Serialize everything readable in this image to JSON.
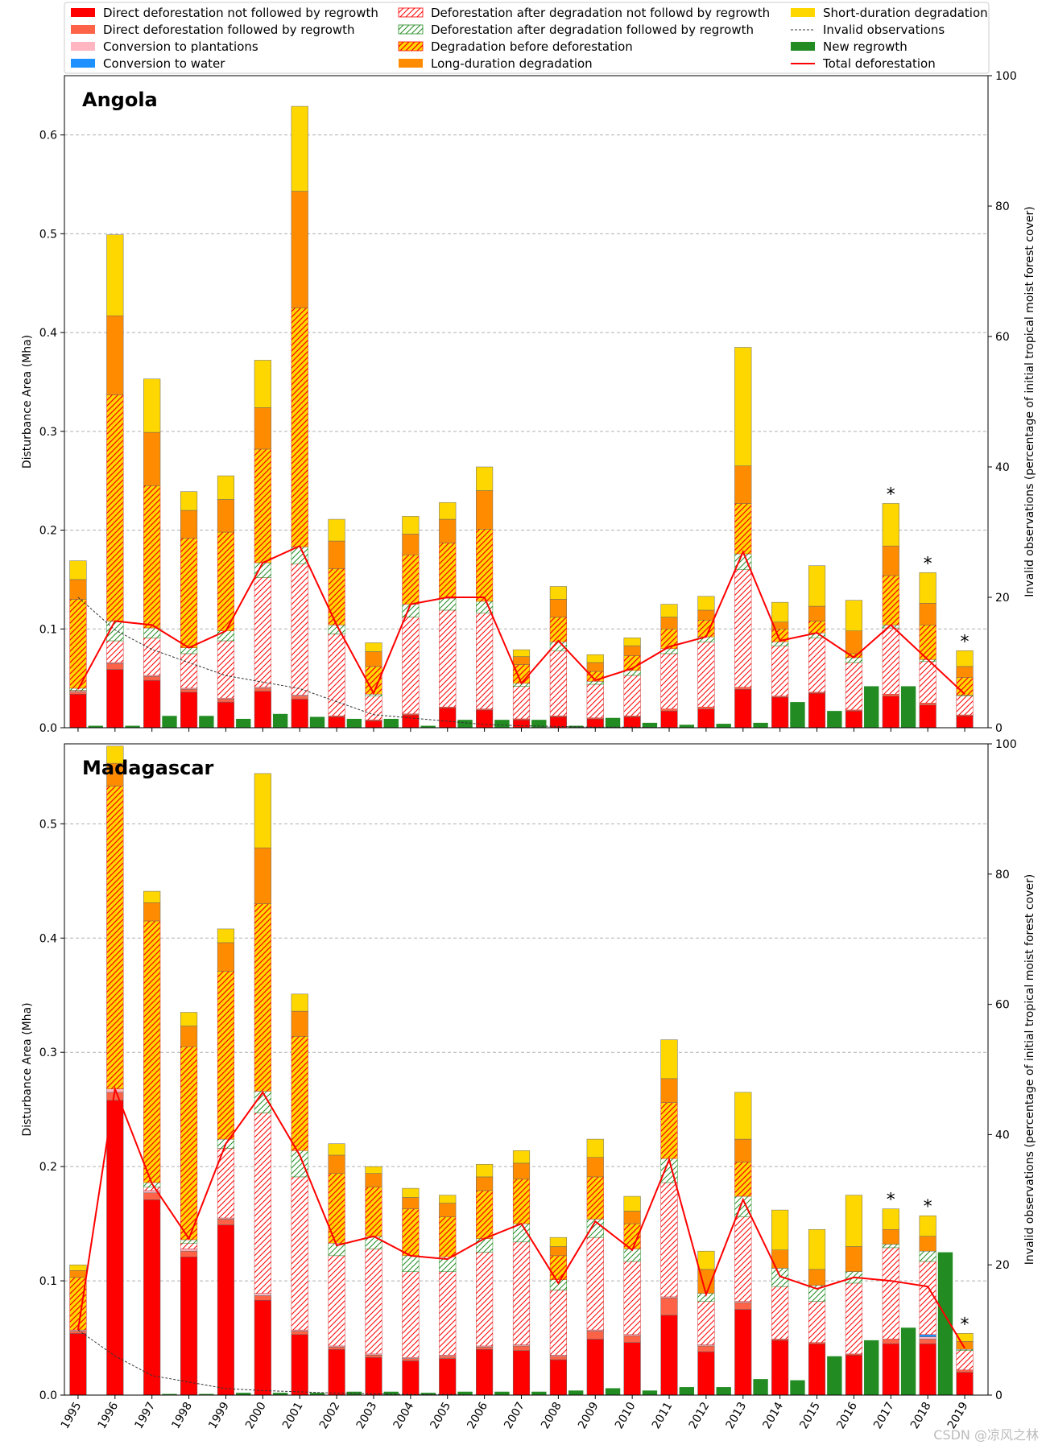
{
  "colors": {
    "direct_no_regrowth": "#ff0000",
    "direct_regrowth": "#ff6347",
    "plantations": "#ffb6c1",
    "water": "#1e90ff",
    "deg_def_no_regrowth_hatch": "#ff0000",
    "deg_def_regrowth_hatch": "#228b22",
    "deg_before_def_fill": "#ffd700",
    "deg_before_def_hatch": "#ff0000",
    "long_deg": "#ff8c00",
    "short_deg": "#ffd700",
    "new_regrowth": "#228b22",
    "invalid": "#333333",
    "total": "#ff0000"
  },
  "legend": [
    {
      "key": "direct_no_regrowth",
      "label": "Direct deforestation not followed by regrowth",
      "style": "solid",
      "icon": "red-square"
    },
    {
      "key": "direct_regrowth",
      "label": "Direct deforestation followed by regrowth",
      "style": "solid",
      "icon": "tomato-square"
    },
    {
      "key": "plantations",
      "label": "Conversion to plantations",
      "style": "solid",
      "icon": "pink-square"
    },
    {
      "key": "water",
      "label": "Conversion to water",
      "style": "solid",
      "icon": "blue-square"
    },
    {
      "key": "deg_def_no_regrowth",
      "label": "Deforestation after degradation not followd by regrowth",
      "style": "hatch-red",
      "icon": "red-hatch-square"
    },
    {
      "key": "deg_def_regrowth",
      "label": "Deforestation after degradation followed by regrowth",
      "style": "hatch-green",
      "icon": "green-hatch-square"
    },
    {
      "key": "deg_before_def",
      "label": "Degradation before deforestation",
      "style": "hatch-yellow",
      "icon": "yellow-hatch-square"
    },
    {
      "key": "long_deg",
      "label": "Long-duration degradation",
      "style": "solid",
      "icon": "orange-square"
    },
    {
      "key": "short_deg",
      "label": "Short-duration degradation",
      "style": "solid",
      "icon": "gold-square"
    },
    {
      "key": "invalid",
      "label": "Invalid observations",
      "style": "dashed",
      "icon": "dashed-line"
    },
    {
      "key": "new_regrowth",
      "label": "New regrowth",
      "style": "solid",
      "icon": "green-square"
    },
    {
      "key": "total",
      "label": "Total deforestation",
      "style": "line",
      "icon": "red-line"
    }
  ],
  "chart_data": [
    {
      "type": "bar",
      "title": "Angola",
      "ylabel": "Disturbance Area (Mha)",
      "y2label": "Invalid observations (percentage of initial tropical moist forest cover)",
      "ylim": [
        0,
        0.66
      ],
      "y2lim": [
        0,
        100
      ],
      "yticks": [
        "0.0",
        "0.1",
        "0.2",
        "0.3",
        "0.4",
        "0.5",
        "0.6"
      ],
      "y2ticks": [
        "0",
        "20",
        "40",
        "60",
        "80",
        "100"
      ],
      "categories": [
        "1995",
        "1996",
        "1997",
        "1998",
        "1999",
        "2000",
        "2001",
        "2002",
        "2003",
        "2004",
        "2005",
        "2006",
        "2007",
        "2008",
        "2009",
        "2010",
        "2011",
        "2012",
        "2013",
        "2014",
        "2015",
        "2016",
        "2017",
        "2018",
        "2019"
      ],
      "partial_year_markers": [
        "2017",
        "2018",
        "2019"
      ],
      "partial_marker_label": "*",
      "series": [
        {
          "key": "direct_no_regrowth",
          "name": "Direct deforestation not followed by regrowth",
          "values": [
            0.034,
            0.059,
            0.048,
            0.036,
            0.026,
            0.037,
            0.029,
            0.011,
            0.007,
            0.013,
            0.02,
            0.018,
            0.008,
            0.011,
            0.009,
            0.011,
            0.017,
            0.019,
            0.039,
            0.031,
            0.035,
            0.017,
            0.032,
            0.023,
            0.012
          ]
        },
        {
          "key": "direct_regrowth",
          "name": "Direct deforestation followed by regrowth",
          "values": [
            0.002,
            0.006,
            0.004,
            0.003,
            0.003,
            0.003,
            0.003,
            0.001,
            0.001,
            0.001,
            0.001,
            0.001,
            0.001,
            0.001,
            0.001,
            0.001,
            0.002,
            0.002,
            0.002,
            0.001,
            0.001,
            0.001,
            0.002,
            0.002,
            0.001
          ]
        },
        {
          "key": "plantations",
          "name": "Conversion to plantations",
          "values": [
            0.001,
            0.001,
            0.001,
            0.001,
            0.001,
            0.001,
            0.001,
            0,
            0,
            0,
            0,
            0,
            0,
            0,
            0,
            0,
            0,
            0,
            0,
            0,
            0,
            0,
            0,
            0,
            0
          ]
        },
        {
          "key": "water",
          "name": "Conversion to water",
          "values": [
            0,
            0,
            0,
            0,
            0,
            0,
            0,
            0,
            0,
            0,
            0,
            0,
            0,
            0,
            0,
            0,
            0,
            0,
            0,
            0,
            0,
            0,
            0,
            0,
            0
          ]
        },
        {
          "key": "deg_def_no_regrowth",
          "name": "Deforestation after degradation not followd by regrowth",
          "values": [
            0.001,
            0.022,
            0.038,
            0.035,
            0.058,
            0.111,
            0.133,
            0.083,
            0.024,
            0.098,
            0.098,
            0.097,
            0.033,
            0.066,
            0.034,
            0.041,
            0.056,
            0.066,
            0.119,
            0.051,
            0.055,
            0.048,
            0.067,
            0.042,
            0.019
          ]
        },
        {
          "key": "deg_def_regrowth",
          "name": "Deforestation after degradation followed by regrowth",
          "values": [
            0.002,
            0.02,
            0.01,
            0.006,
            0.01,
            0.015,
            0.017,
            0.009,
            0.002,
            0.013,
            0.012,
            0.012,
            0.003,
            0.009,
            0.003,
            0.005,
            0.005,
            0.005,
            0.016,
            0.004,
            0.005,
            0.005,
            0.003,
            0.002,
            0.001
          ]
        },
        {
          "key": "deg_before_def",
          "name": "Degradation before deforestation",
          "values": [
            0.09,
            0.229,
            0.144,
            0.111,
            0.1,
            0.115,
            0.242,
            0.057,
            0.028,
            0.05,
            0.056,
            0.073,
            0.019,
            0.025,
            0.01,
            0.015,
            0.02,
            0.017,
            0.051,
            0.013,
            0.012,
            0.004,
            0.05,
            0.035,
            0.018
          ]
        },
        {
          "key": "long_deg",
          "name": "Long-duration degradation",
          "values": [
            0.02,
            0.08,
            0.054,
            0.028,
            0.033,
            0.042,
            0.118,
            0.028,
            0.015,
            0.021,
            0.024,
            0.039,
            0.008,
            0.018,
            0.009,
            0.01,
            0.012,
            0.01,
            0.038,
            0.007,
            0.015,
            0.023,
            0.03,
            0.022,
            0.011
          ]
        },
        {
          "key": "short_deg",
          "name": "Short-duration degradation",
          "values": [
            0.019,
            0.082,
            0.054,
            0.019,
            0.024,
            0.048,
            0.086,
            0.022,
            0.009,
            0.018,
            0.017,
            0.024,
            0.007,
            0.013,
            0.008,
            0.008,
            0.013,
            0.014,
            0.12,
            0.02,
            0.041,
            0.031,
            0.043,
            0.031,
            0.016
          ]
        }
      ],
      "new_regrowth": [
        0.002,
        0.002,
        0.012,
        0.012,
        0.009,
        0.014,
        0.011,
        0.009,
        0.009,
        0.002,
        0.008,
        0.008,
        0.008,
        0.002,
        0.01,
        0.005,
        0.003,
        0.004,
        0.005,
        0.026,
        0.017,
        0.042,
        0.042,
        0,
        0
      ],
      "total_deforestation": [
        0.039,
        0.108,
        0.104,
        0.081,
        0.098,
        0.167,
        0.184,
        0.104,
        0.035,
        0.125,
        0.132,
        0.132,
        0.045,
        0.088,
        0.048,
        0.06,
        0.082,
        0.092,
        0.178,
        0.088,
        0.096,
        0.071,
        0.104,
        0.069,
        0.034
      ],
      "invalid_observations_pct": [
        20,
        15,
        12,
        10,
        8,
        7,
        6,
        4,
        2,
        1.5,
        1,
        0.5,
        0.3,
        0.2,
        0.1,
        0.1,
        0,
        0,
        0,
        0,
        0,
        0,
        0,
        0,
        0
      ]
    },
    {
      "type": "bar",
      "title": "Madagascar",
      "ylabel": "Disturbance Area (Mha)",
      "y2label": "Invalid observations (percentage of initial tropical moist forest cover)",
      "ylim": [
        0,
        0.57
      ],
      "y2lim": [
        0,
        100
      ],
      "yticks": [
        "0.0",
        "0.1",
        "0.2",
        "0.3",
        "0.4",
        "0.5"
      ],
      "y2ticks": [
        "0",
        "20",
        "40",
        "60",
        "80",
        "100"
      ],
      "categories": [
        "1995",
        "1996",
        "1997",
        "1998",
        "1999",
        "2000",
        "2001",
        "2002",
        "2003",
        "2004",
        "2005",
        "2006",
        "2007",
        "2008",
        "2009",
        "2010",
        "2011",
        "2012",
        "2013",
        "2014",
        "2015",
        "2016",
        "2017",
        "2018",
        "2019"
      ],
      "partial_year_markers": [
        "2017",
        "2018",
        "2019"
      ],
      "partial_marker_label": "*",
      "series": [
        {
          "key": "direct_no_regrowth",
          "name": "Direct deforestation not followed by regrowth",
          "values": [
            0.054,
            0.258,
            0.171,
            0.121,
            0.149,
            0.083,
            0.053,
            0.04,
            0.033,
            0.03,
            0.032,
            0.04,
            0.039,
            0.031,
            0.049,
            0.046,
            0.07,
            0.038,
            0.075,
            0.048,
            0.045,
            0.035,
            0.045,
            0.045,
            0.02
          ]
        },
        {
          "key": "direct_regrowth",
          "name": "Direct deforestation followed by regrowth",
          "values": [
            0.002,
            0.007,
            0.006,
            0.005,
            0.005,
            0.004,
            0.003,
            0.002,
            0.002,
            0.002,
            0.002,
            0.002,
            0.004,
            0.003,
            0.007,
            0.006,
            0.015,
            0.005,
            0.006,
            0.001,
            0.001,
            0.001,
            0.004,
            0.004,
            0.002
          ]
        },
        {
          "key": "plantations",
          "name": "Conversion to plantations",
          "values": [
            0.001,
            0.003,
            0.002,
            0.002,
            0.001,
            0.002,
            0.001,
            0.001,
            0.001,
            0.001,
            0.001,
            0.001,
            0.001,
            0.001,
            0.001,
            0.001,
            0.001,
            0.001,
            0.001,
            0,
            0,
            0,
            0,
            0.002,
            0
          ]
        },
        {
          "key": "water",
          "name": "Conversion to water",
          "values": [
            0,
            0,
            0,
            0,
            0,
            0,
            0,
            0,
            0,
            0,
            0,
            0,
            0,
            0,
            0,
            0,
            0,
            0,
            0,
            0,
            0,
            0,
            0,
            0.002,
            0
          ]
        },
        {
          "key": "deg_def_no_regrowth",
          "name": "Deforestation after degradation not followd by regrowth",
          "values": [
            0,
            0,
            0.003,
            0.005,
            0.061,
            0.158,
            0.134,
            0.079,
            0.092,
            0.075,
            0.073,
            0.082,
            0.09,
            0.057,
            0.081,
            0.064,
            0.1,
            0.038,
            0.074,
            0.046,
            0.036,
            0.062,
            0.08,
            0.064,
            0.017
          ]
        },
        {
          "key": "deg_def_regrowth",
          "name": "Deforestation after degradation followed by regrowth",
          "values": [
            0,
            0,
            0.004,
            0.003,
            0.008,
            0.019,
            0.023,
            0.011,
            0.011,
            0.014,
            0.013,
            0.012,
            0.016,
            0.009,
            0.016,
            0.011,
            0.021,
            0.007,
            0.018,
            0.016,
            0.014,
            0.01,
            0.003,
            0.009,
            0.001
          ]
        },
        {
          "key": "deg_before_def",
          "name": "Degradation before deforestation",
          "values": [
            0.046,
            0.265,
            0.229,
            0.169,
            0.147,
            0.164,
            0.1,
            0.061,
            0.043,
            0.041,
            0.035,
            0.042,
            0.039,
            0.021,
            0.037,
            0.022,
            0.049,
            0.0,
            0.03,
            0.0,
            0.0,
            0.0,
            0.0,
            0.0,
            0.0
          ]
        },
        {
          "key": "long_deg",
          "name": "Long-duration degradation",
          "values": [
            0.006,
            0.02,
            0.016,
            0.018,
            0.025,
            0.049,
            0.022,
            0.016,
            0.012,
            0.01,
            0.012,
            0.012,
            0.014,
            0.008,
            0.017,
            0.011,
            0.021,
            0.021,
            0.02,
            0.016,
            0.014,
            0.022,
            0.013,
            0.013,
            0.007
          ]
        },
        {
          "key": "short_deg",
          "name": "Short-duration degradation",
          "values": [
            0.005,
            0.015,
            0.01,
            0.012,
            0.012,
            0.065,
            0.015,
            0.01,
            0.006,
            0.008,
            0.007,
            0.011,
            0.011,
            0.008,
            0.016,
            0.013,
            0.034,
            0.016,
            0.041,
            0.035,
            0.035,
            0.045,
            0.018,
            0.018,
            0.007
          ]
        }
      ],
      "new_regrowth": [
        0,
        0,
        0.001,
        0.001,
        0.002,
        0.002,
        0.002,
        0.003,
        0.003,
        0.002,
        0.003,
        0.003,
        0.003,
        0.004,
        0.006,
        0.004,
        0.007,
        0.007,
        0.014,
        0.013,
        0.034,
        0.048,
        0.059,
        0.125,
        0
      ],
      "total_deforestation": [
        0.057,
        0.268,
        0.185,
        0.137,
        0.22,
        0.265,
        0.21,
        0.131,
        0.139,
        0.122,
        0.119,
        0.137,
        0.15,
        0.098,
        0.152,
        0.127,
        0.206,
        0.088,
        0.171,
        0.104,
        0.093,
        0.103,
        0.1,
        0.095,
        0.041
      ],
      "invalid_observations_pct": [
        10,
        6,
        3,
        2,
        1,
        0.7,
        0.5,
        0.3,
        0.2,
        0.1,
        0.1,
        0,
        0,
        0,
        0,
        0,
        0,
        0,
        0,
        0,
        0,
        0,
        0,
        0,
        0
      ]
    }
  ],
  "watermark": "CSDN @凉风之林"
}
